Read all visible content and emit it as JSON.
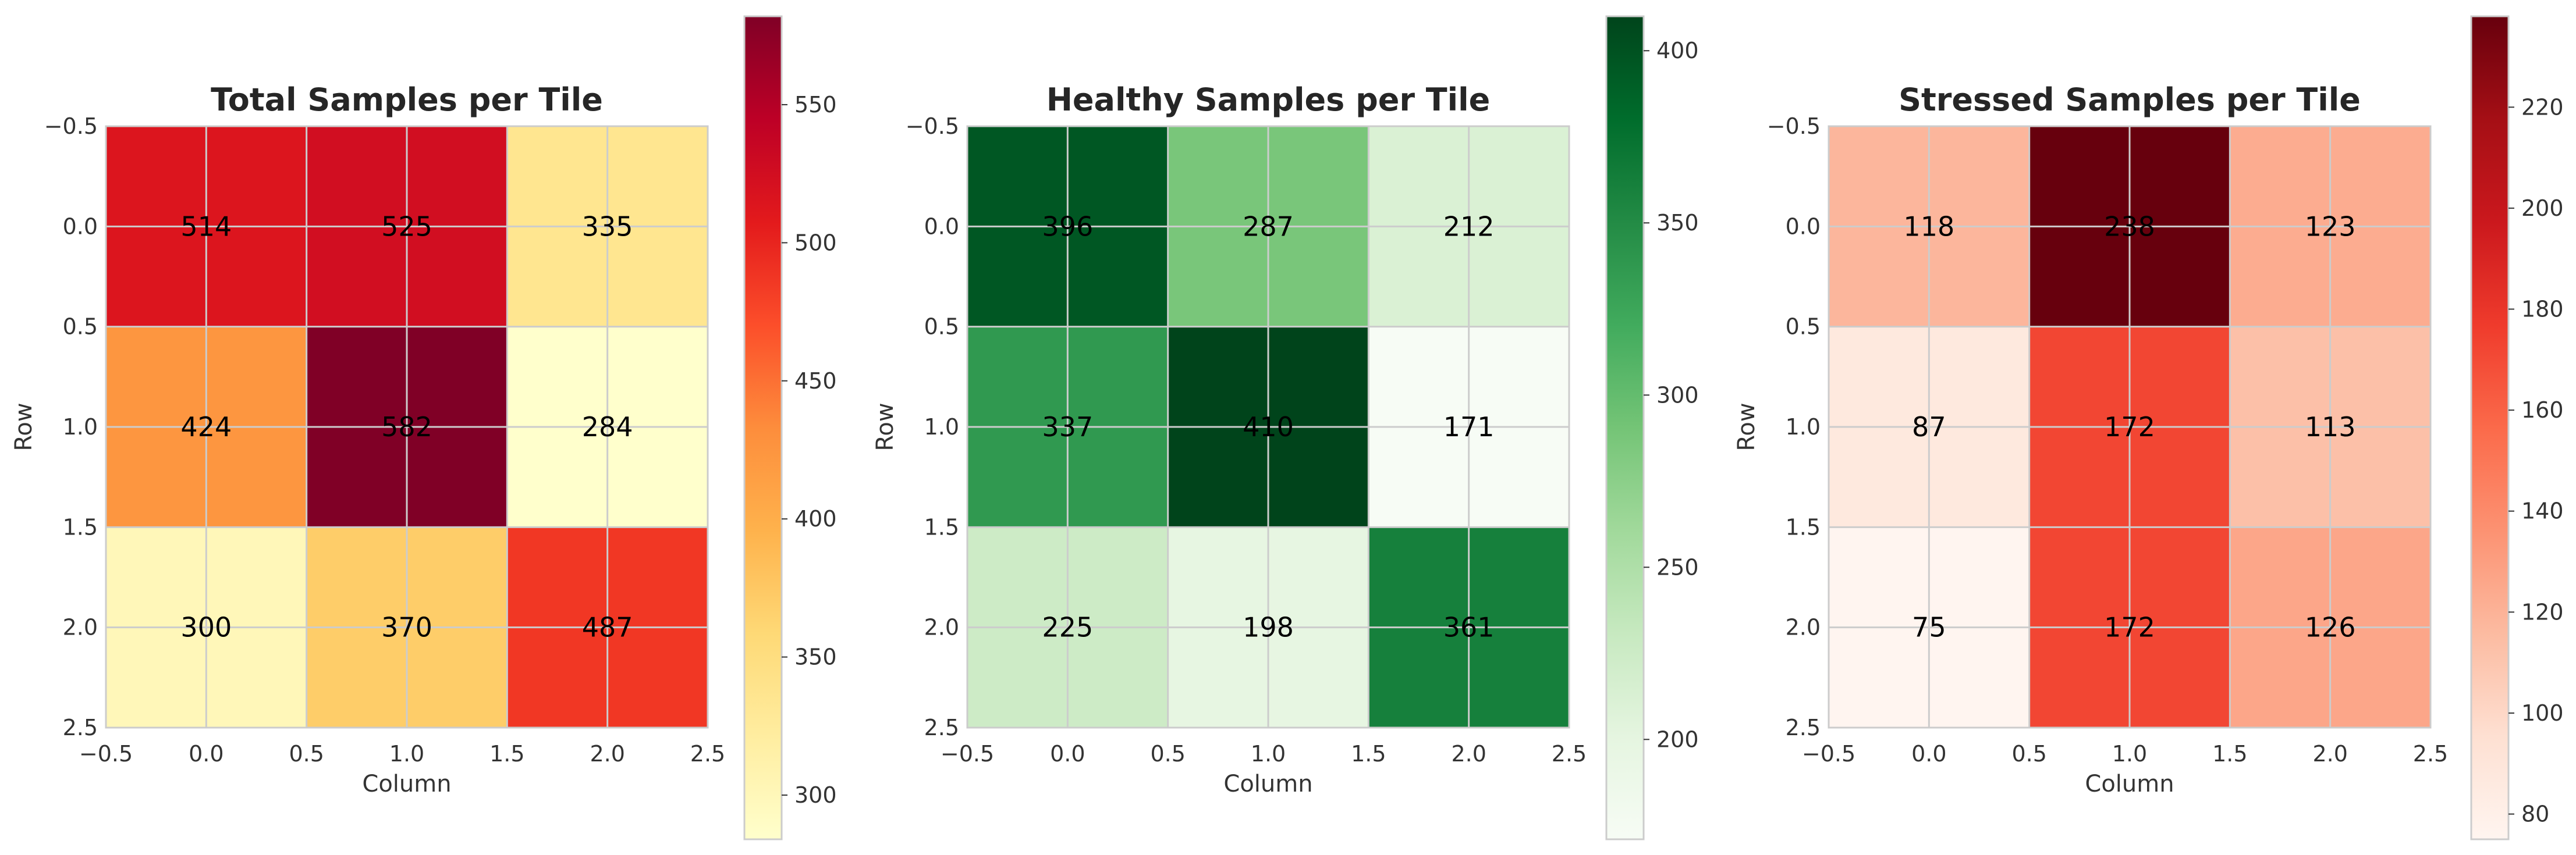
{
  "chart_data": [
    {
      "type": "heatmap",
      "title": "Total Samples per Tile",
      "xlabel": "Column",
      "ylabel": "Row",
      "colormap": "YlOrRd",
      "values": [
        [
          514,
          525,
          335
        ],
        [
          424,
          582,
          284
        ],
        [
          300,
          370,
          487
        ]
      ],
      "value_labels": [
        [
          "514",
          "525",
          "335"
        ],
        [
          "424",
          "582",
          "284"
        ],
        [
          "300",
          "370",
          "487"
        ]
      ],
      "colorbar_range": [
        284,
        582
      ],
      "colorbar_ticks": [
        300,
        350,
        400,
        450,
        500,
        550
      ],
      "colorbar_tick_labels": [
        "300",
        "350",
        "400",
        "450",
        "500",
        "550"
      ]
    },
    {
      "type": "heatmap",
      "title": "Healthy Samples per Tile",
      "xlabel": "Column",
      "ylabel": "Row",
      "colormap": "Greens",
      "values": [
        [
          396,
          287,
          212
        ],
        [
          337,
          410,
          171
        ],
        [
          225,
          198,
          361
        ]
      ],
      "value_labels": [
        [
          "396",
          "287",
          "212"
        ],
        [
          "337",
          "410",
          "171"
        ],
        [
          "225",
          "198",
          "361"
        ]
      ],
      "colorbar_range": [
        171,
        410
      ],
      "colorbar_ticks": [
        200,
        250,
        300,
        350,
        400
      ],
      "colorbar_tick_labels": [
        "200",
        "250",
        "300",
        "350",
        "400"
      ]
    },
    {
      "type": "heatmap",
      "title": "Stressed Samples per Tile",
      "xlabel": "Column",
      "ylabel": "Row",
      "colormap": "Reds",
      "values": [
        [
          118,
          238,
          123
        ],
        [
          87,
          172,
          113
        ],
        [
          75,
          172,
          126
        ]
      ],
      "value_labels": [
        [
          "118",
          "238",
          "123"
        ],
        [
          "87",
          "172",
          "113"
        ],
        [
          "75",
          "172",
          "126"
        ]
      ],
      "colorbar_range": [
        75,
        238
      ],
      "colorbar_ticks": [
        80,
        100,
        120,
        140,
        160,
        180,
        200,
        220
      ],
      "colorbar_tick_labels": [
        "80",
        "100",
        "120",
        "140",
        "160",
        "180",
        "200",
        "220"
      ]
    }
  ],
  "axes": {
    "x_ticks": [
      -0.5,
      0.0,
      0.5,
      1.0,
      1.5,
      2.0,
      2.5
    ],
    "x_tick_labels": [
      "−0.5",
      "0.0",
      "0.5",
      "1.0",
      "1.5",
      "2.0",
      "2.5"
    ],
    "y_ticks": [
      -0.5,
      0.0,
      0.5,
      1.0,
      1.5,
      2.0,
      2.5
    ],
    "y_tick_labels": [
      "−0.5",
      "0.0",
      "0.5",
      "1.0",
      "1.5",
      "2.0",
      "2.5"
    ],
    "xlim": [
      -0.5,
      2.5
    ],
    "ylim": [
      2.5,
      -0.5
    ],
    "grid": true
  }
}
